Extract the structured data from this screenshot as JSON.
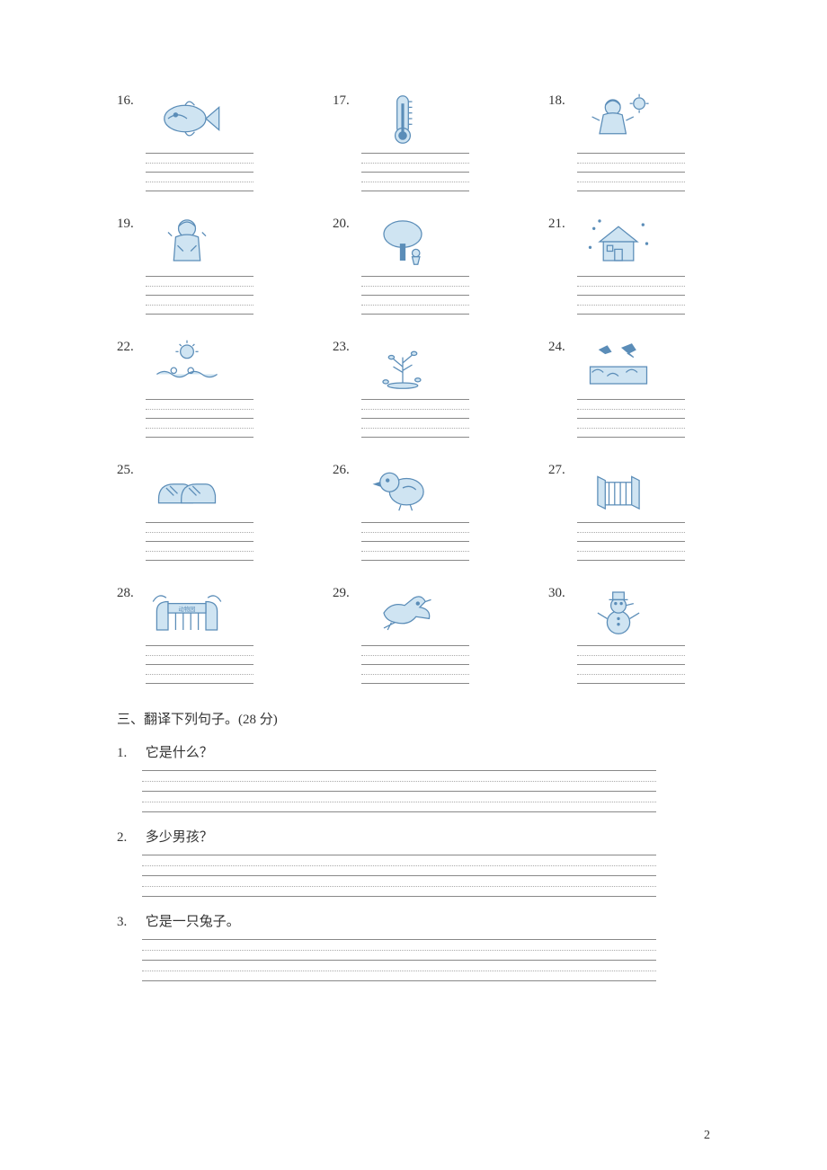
{
  "picture_items": [
    {
      "num": "16.",
      "icon": "fish"
    },
    {
      "num": "17.",
      "icon": "thermometer"
    },
    {
      "num": "18.",
      "icon": "girl-sun"
    },
    {
      "num": "19.",
      "icon": "cold-person"
    },
    {
      "num": "20.",
      "icon": "tree-child"
    },
    {
      "num": "21.",
      "icon": "snow-house"
    },
    {
      "num": "22.",
      "icon": "sun-swim"
    },
    {
      "num": "23.",
      "icon": "autumn-tree"
    },
    {
      "num": "24.",
      "icon": "swallows"
    },
    {
      "num": "25.",
      "icon": "shoes"
    },
    {
      "num": "26.",
      "icon": "chick"
    },
    {
      "num": "27.",
      "icon": "gate"
    },
    {
      "num": "28.",
      "icon": "zoo-gate"
    },
    {
      "num": "29.",
      "icon": "dove"
    },
    {
      "num": "30.",
      "icon": "snowman"
    }
  ],
  "section3_heading": "三、翻译下列句子。(28 分)",
  "translation_items": [
    {
      "num": "1.",
      "text": "它是什么？"
    },
    {
      "num": "2.",
      "text": "多少男孩？"
    },
    {
      "num": "3.",
      "text": "它是一只兔子。"
    }
  ],
  "page_number": "2"
}
